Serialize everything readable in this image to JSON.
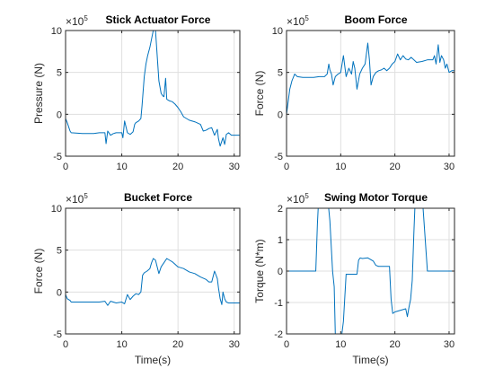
{
  "chart_data": [
    {
      "type": "line",
      "title": "Stick Actuator Force",
      "xlabel": "",
      "ylabel": "Pressure (N)",
      "xlim": [
        0,
        31
      ],
      "ylim": [
        -5,
        10
      ],
      "xticks": [
        0,
        10,
        20,
        30
      ],
      "yticks": [
        -5,
        0,
        5,
        10
      ],
      "exponent_base": "×10",
      "exponent_power": "5",
      "grid": true,
      "line_color": "#0072BD",
      "series": [
        {
          "x": [
            0,
            0.3,
            0.8,
            1,
            3,
            5,
            6,
            7,
            7.2,
            7.5,
            8,
            8.5,
            9,
            9.5,
            10,
            10.2,
            10.5,
            11,
            11.5,
            12,
            12.3,
            12.5,
            13,
            13.4,
            13.6,
            14,
            14.3,
            14.6,
            15,
            15.3,
            15.6,
            16,
            16.2,
            16.4,
            16.6,
            17,
            17.3,
            17.5,
            17.8,
            18,
            18.5,
            19,
            19.5,
            20,
            20.5,
            21,
            21.5,
            22,
            23,
            24,
            24.5,
            25,
            25.5,
            26,
            26.5,
            27,
            27.2,
            27.5,
            27.8,
            28,
            28.3,
            28.6,
            29,
            29.5,
            30,
            30.5,
            31
          ],
          "y": [
            -0.5,
            -1,
            -2,
            -2.2,
            -2.3,
            -2.3,
            -2.2,
            -2.2,
            -3.5,
            -2,
            -2.5,
            -2.3,
            -2.2,
            -2.2,
            -2.2,
            -2.8,
            -0.8,
            -2.2,
            -2.4,
            -2.1,
            -1.2,
            -1,
            -0.8,
            -0.5,
            1,
            4.5,
            6,
            7,
            8,
            9,
            10,
            10,
            8,
            6,
            4,
            2.5,
            2.2,
            2.1,
            4.3,
            1.8,
            1.6,
            1.5,
            1.2,
            0.8,
            0.3,
            -0.3,
            -0.5,
            -0.7,
            -0.9,
            -1.2,
            -2,
            -1.9,
            -1.7,
            -1.6,
            -2.5,
            -1.8,
            -2.9,
            -3.8,
            -3.2,
            -2.8,
            -3.6,
            -2.4,
            -2.2,
            -2.5,
            -2.5,
            -2.5,
            -2.5
          ]
        }
      ]
    },
    {
      "type": "line",
      "title": "Boom Force",
      "xlabel": "",
      "ylabel": "Force (N)",
      "xlim": [
        0,
        31
      ],
      "ylim": [
        -5,
        10
      ],
      "xticks": [
        0,
        10,
        20,
        30
      ],
      "yticks": [
        -5,
        0,
        5,
        10
      ],
      "exponent_base": "×10",
      "exponent_power": "5",
      "grid": true,
      "line_color": "#0072BD",
      "series": [
        {
          "x": [
            0,
            0.3,
            0.6,
            1,
            1.5,
            2,
            3,
            4,
            5,
            6,
            7,
            7.5,
            7.8,
            8,
            8.3,
            8.6,
            9,
            9.5,
            10,
            10.5,
            11,
            11.5,
            12,
            12.3,
            12.6,
            13,
            13.5,
            14,
            14.5,
            14.8,
            15,
            15.3,
            15.6,
            16,
            16.5,
            17,
            17.5,
            18,
            18.5,
            19,
            19.5,
            20,
            20.5,
            21,
            21.5,
            22,
            22.5,
            23,
            23.5,
            24,
            25,
            26,
            27,
            27.3,
            27.6,
            28,
            28.3,
            28.6,
            29,
            29.3,
            29.6,
            30,
            30.5,
            31
          ],
          "y": [
            0,
            1.5,
            3,
            4,
            4.8,
            4.5,
            4.4,
            4.4,
            4.4,
            4.5,
            4.5,
            4.8,
            6,
            5.3,
            4.8,
            3.5,
            4.5,
            4.8,
            5,
            7,
            4.5,
            5.5,
            4.8,
            6.3,
            5.5,
            3,
            4.8,
            5.5,
            6,
            7.5,
            8.5,
            6.5,
            3.5,
            4.5,
            5,
            5.2,
            5.3,
            5.5,
            5.2,
            5.5,
            6,
            6.3,
            7.2,
            6.5,
            7,
            6.6,
            6.5,
            6.8,
            6.5,
            6.2,
            6.3,
            6.5,
            6.5,
            7,
            6,
            8.3,
            6.2,
            7,
            6.5,
            5.5,
            6,
            5,
            5.2,
            5.2
          ]
        }
      ]
    },
    {
      "type": "line",
      "title": "Bucket Force",
      "xlabel": "Time(s)",
      "ylabel": "Force (N)",
      "xlim": [
        0,
        31
      ],
      "ylim": [
        -5,
        10
      ],
      "xticks": [
        0,
        10,
        20,
        30
      ],
      "yticks": [
        -5,
        0,
        5,
        10
      ],
      "exponent_base": "×10",
      "exponent_power": "5",
      "grid": true,
      "line_color": "#0072BD",
      "series": [
        {
          "x": [
            0,
            0.3,
            0.8,
            1,
            3,
            5,
            6,
            7,
            7.5,
            8,
            9,
            10,
            10.5,
            11,
            11.5,
            12,
            12.5,
            13,
            13.4,
            13.7,
            14,
            14.5,
            15,
            15.3,
            15.6,
            16,
            16.3,
            16.6,
            17,
            17.5,
            18,
            18.5,
            19,
            19.5,
            20,
            21,
            22,
            23,
            24,
            25,
            25.5,
            26,
            26.5,
            27,
            27.2,
            27.5,
            27.8,
            28,
            28.3,
            28.6,
            29,
            30,
            31
          ],
          "y": [
            -0.3,
            -0.8,
            -1,
            -1.2,
            -1.2,
            -1.2,
            -1.2,
            -1.1,
            -1.6,
            -1.1,
            -1.3,
            -1.2,
            -1.4,
            -0.3,
            -0.9,
            -0.5,
            -0.2,
            -0.3,
            0,
            2,
            2.3,
            2.5,
            2.8,
            3.5,
            4,
            3.8,
            3,
            2.2,
            3,
            3.5,
            4,
            3.8,
            3.6,
            3.3,
            3,
            2.8,
            2.4,
            2.2,
            1.8,
            1.5,
            1.2,
            1.2,
            2.5,
            1.6,
            0.5,
            -0.8,
            -1.5,
            0,
            -0.8,
            -1.2,
            -1.3,
            -1.3,
            -1.3
          ]
        }
      ]
    },
    {
      "type": "line",
      "title": "Swing Motor Torque",
      "xlabel": "Time(s)",
      "ylabel": "Torque (N*m)",
      "xlim": [
        0,
        31
      ],
      "ylim": [
        -2,
        2
      ],
      "xticks": [
        0,
        10,
        20,
        30
      ],
      "yticks": [
        -2,
        -1,
        0,
        1,
        2
      ],
      "exponent_base": "×10",
      "exponent_power": "5",
      "grid": true,
      "line_color": "#0072BD",
      "series": [
        {
          "x": [
            0,
            3,
            5,
            5.4,
            5.7,
            5.9,
            6.1,
            7.5,
            8,
            8.5,
            8.8,
            9,
            9.5,
            10,
            10.5,
            11,
            11.5,
            12,
            12.5,
            13,
            13.3,
            13.6,
            14,
            15,
            16,
            16.5,
            17,
            17.5,
            18,
            18.5,
            19,
            19.3,
            19.6,
            20,
            21,
            22,
            22.3,
            22.6,
            22.9,
            23.2,
            23.5,
            23.8,
            24,
            25,
            26,
            27,
            28,
            29,
            30,
            31
          ],
          "y": [
            0,
            0,
            0,
            0,
            1.5,
            2.2,
            2.5,
            2.5,
            1.6,
            0,
            -0.5,
            -2,
            -2.3,
            -2.3,
            -1.6,
            -0.1,
            -0.1,
            -0.1,
            -0.1,
            -0.1,
            0.35,
            0.42,
            0.4,
            0.42,
            0.32,
            0.18,
            0.15,
            0.15,
            0.15,
            0.15,
            0.15,
            -0.9,
            -1.35,
            -1.3,
            -1.25,
            -1.2,
            -1.45,
            -1.15,
            -0.9,
            -0.3,
            1.2,
            2.5,
            2.5,
            2.5,
            0,
            0,
            0,
            0,
            0,
            0
          ]
        }
      ]
    }
  ]
}
